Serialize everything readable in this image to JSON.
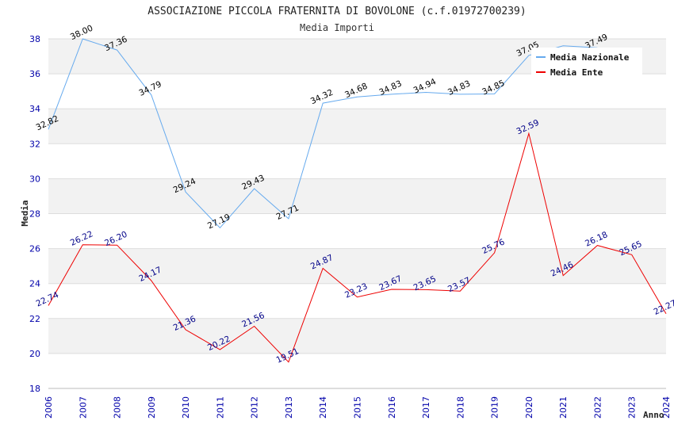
{
  "chart_data": {
    "type": "line",
    "title": "ASSOCIAZIONE PICCOLA FRATERNITA DI BOVOLONE (c.f.01972700239)",
    "subtitle": "Media Importi",
    "xlabel": "Anno",
    "ylabel": "Media",
    "ylim": [
      18,
      38
    ],
    "yticks": [
      "18",
      "20",
      "22",
      "24",
      "26",
      "28",
      "30",
      "32",
      "34",
      "36",
      "38"
    ],
    "categories": [
      "2006",
      "2007",
      "2008",
      "2009",
      "2010",
      "2011",
      "2012",
      "2013",
      "2014",
      "2015",
      "2016",
      "2017",
      "2018",
      "2019",
      "2020",
      "2021",
      "2022",
      "2023",
      "2024"
    ],
    "legend_position": "top-right",
    "series": [
      {
        "name": "Media Nazionale",
        "color": "#66aaee",
        "label_color": "#000000",
        "values": [
          32.82,
          38.0,
          37.36,
          34.79,
          29.24,
          27.19,
          29.43,
          27.71,
          34.32,
          34.68,
          34.83,
          34.94,
          34.83,
          34.85,
          37.05,
          37.6,
          37.49,
          null,
          null
        ],
        "labels": [
          "32.82",
          "38.00",
          "37.36",
          "34.79",
          "29.24",
          "27.19",
          "29.43",
          "27.71",
          "34.32",
          "34.68",
          "34.83",
          "34.94",
          "34.83",
          "34.85",
          "37.05",
          "",
          "37.49",
          "",
          ""
        ]
      },
      {
        "name": "Media Ente",
        "color": "#ee0000",
        "label_color": "#000088",
        "values": [
          22.74,
          26.22,
          26.2,
          24.17,
          21.36,
          20.22,
          21.56,
          19.51,
          24.87,
          23.23,
          23.67,
          23.65,
          23.57,
          25.76,
          32.59,
          24.46,
          26.18,
          25.65,
          22.27
        ],
        "labels": [
          "22.74",
          "26.22",
          "26.20",
          "24.17",
          "21.36",
          "20.22",
          "21.56",
          "19.51",
          "24.87",
          "23.23",
          "23.67",
          "23.65",
          "23.57",
          "25.76",
          "32.59",
          "24.46",
          "26.18",
          "25.65",
          "22.27"
        ]
      }
    ]
  }
}
